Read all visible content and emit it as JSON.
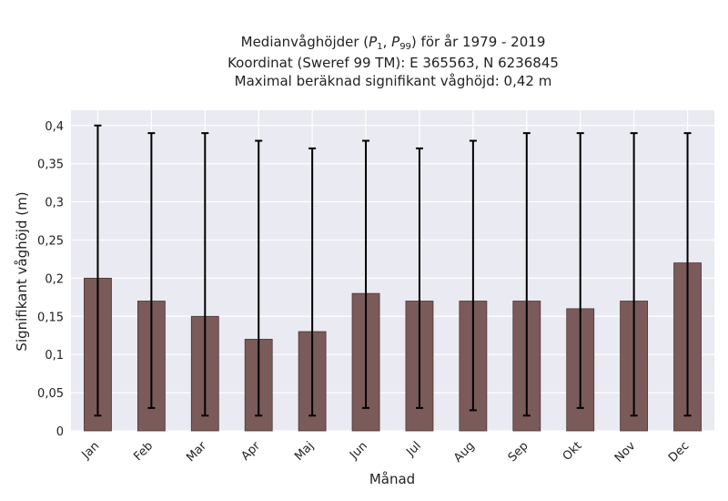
{
  "chart_data": {
    "type": "bar",
    "title_lines": {
      "line1_prefix": "Medianvåghöjder (",
      "p1_base": "P",
      "p1_sub": "1",
      "separator": ", ",
      "p99_base": "P",
      "p99_sub": "99",
      "line1_suffix": ") för år 1979 - 2019",
      "line2": "Koordinat (Sweref 99 TM): E 365563, N 6236845",
      "line3": "Maximal beräknad signifikant våghöjd: 0,42 m"
    },
    "xlabel": "Månad",
    "ylabel": "Signifikant våghöjd (m)",
    "categories": [
      "Jan",
      "Feb",
      "Mar",
      "Apr",
      "Maj",
      "Jun",
      "Jul",
      "Aug",
      "Sep",
      "Okt",
      "Nov",
      "Dec"
    ],
    "values": [
      0.2,
      0.17,
      0.15,
      0.12,
      0.13,
      0.18,
      0.17,
      0.17,
      0.17,
      0.16,
      0.17,
      0.22
    ],
    "err_low": [
      0.02,
      0.03,
      0.02,
      0.02,
      0.02,
      0.03,
      0.03,
      0.027,
      0.02,
      0.03,
      0.02,
      0.02
    ],
    "err_high": [
      0.4,
      0.39,
      0.39,
      0.38,
      0.37,
      0.38,
      0.37,
      0.38,
      0.39,
      0.39,
      0.39,
      0.39
    ],
    "ylim": [
      0,
      0.42
    ],
    "yticks": [
      0,
      0.05,
      0.1,
      0.15,
      0.2,
      0.25,
      0.3,
      0.35,
      0.4
    ],
    "ytick_labels": [
      "0",
      "0,05",
      "0,1",
      "0,15",
      "0,2",
      "0,25",
      "0,3",
      "0,35",
      "0,4"
    ],
    "grid": true,
    "colors": {
      "bar": "#7b5a5a",
      "bar_edge": "#4a3434",
      "plot_bg": "#eaeaf2",
      "grid": "#ffffff",
      "error": "#000000"
    }
  }
}
